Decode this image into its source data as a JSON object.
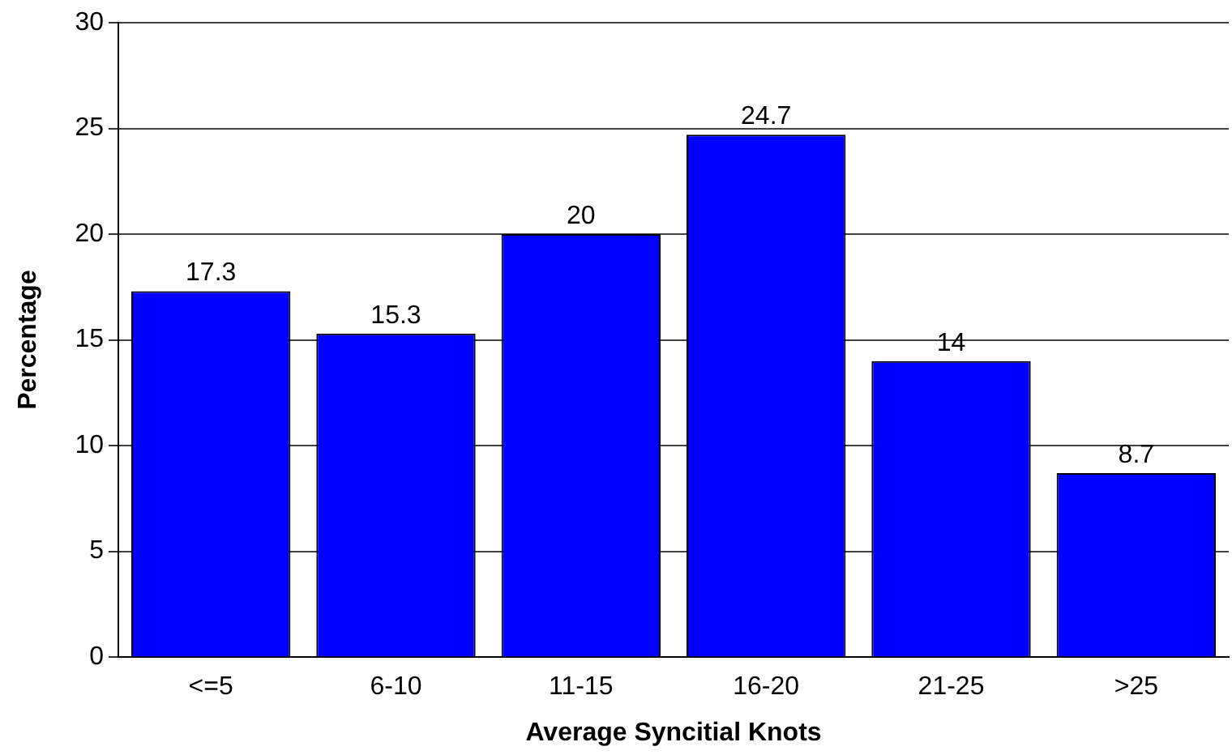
{
  "chart_data": {
    "type": "bar",
    "xlabel": "Average Syncitial Knots",
    "ylabel": "Percentage",
    "categories": [
      "<=5",
      "6-10",
      "11-15",
      "16-20",
      "21-25",
      ">25"
    ],
    "values": [
      17.3,
      15.3,
      20,
      24.7,
      14,
      8.7
    ],
    "color": "#0000ff",
    "ylim": [
      0,
      30
    ],
    "yticks": [
      0,
      5,
      10,
      15,
      20,
      25,
      30
    ],
    "grid": "y",
    "data_labels": true
  }
}
